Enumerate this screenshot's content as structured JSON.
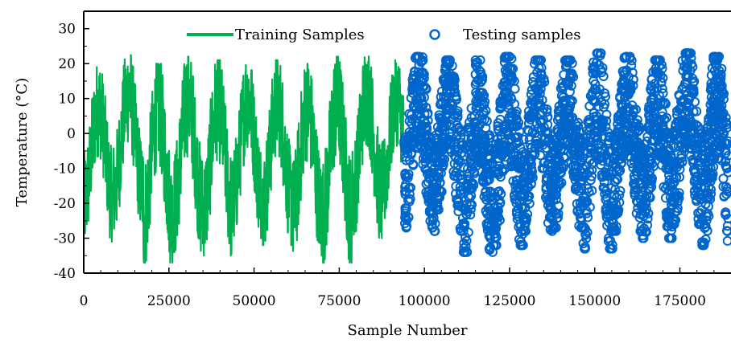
{
  "chart_data": {
    "type": "line",
    "title": "",
    "xlabel": "Sample Number",
    "ylabel": "Temperature (°C)",
    "xlim": [
      0,
      190000
    ],
    "ylim": [
      -40,
      35
    ],
    "x_ticks": [
      0,
      25000,
      50000,
      75000,
      100000,
      125000,
      150000,
      175000
    ],
    "y_ticks": [
      -40,
      -30,
      -20,
      -10,
      0,
      10,
      20,
      30
    ],
    "grid": false,
    "legend_position": "top",
    "series": [
      {
        "name": "Training Samples",
        "style": "line",
        "color": "#00b050",
        "x_range": [
          0,
          94000
        ],
        "period": 8750,
        "peaks": [
          19,
          23,
          20,
          22,
          21,
          22,
          21,
          20,
          22,
          23,
          21
        ],
        "troughs": [
          -31,
          -28,
          -37,
          -34,
          -35,
          -30,
          -32,
          -35,
          -37,
          -30,
          -27
        ]
      },
      {
        "name": "Testing samples",
        "style": "scatter",
        "marker": "circle-open",
        "color": "#0066cc",
        "x_range": [
          94000,
          190000
        ],
        "period": 8750,
        "peaks": [
          22,
          21,
          21,
          22,
          21,
          21,
          23,
          22,
          21,
          23,
          22
        ],
        "troughs": [
          -27,
          -28,
          -34,
          -32,
          -28,
          -27,
          -33,
          -28,
          -30,
          -26,
          -32
        ]
      }
    ]
  }
}
